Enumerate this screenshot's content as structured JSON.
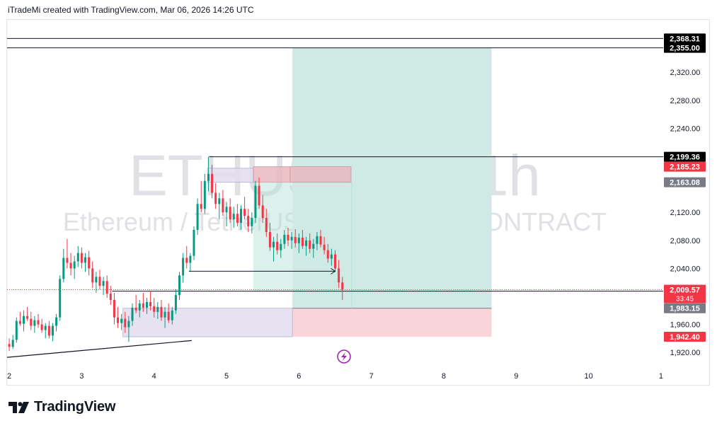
{
  "header": {
    "attribution": "iTradeMi created with TradingView.com, Mar 06, 2026 14:26 UTC"
  },
  "brand": {
    "wordmark": "TradingView"
  },
  "colors": {
    "up": "#089981",
    "down": "#f23645",
    "target_zone": "#cfeae5",
    "stop_zone": "#f9d4d8",
    "demand_zone": "#e3ddf0",
    "supply_zone": "#e8b9c0",
    "current_price": "#f23645",
    "axis_label_dark": "#131722",
    "axis_label_grey": "#787b86"
  },
  "chart_data": {
    "type": "candlestick",
    "symbol_watermark": "ETHUSDT.P, 1h",
    "description_watermark": "Ethereum / TetherUS PERPETUAL CONTRACT",
    "x_tick_labels": [
      "2",
      "3",
      "4",
      "5",
      "6",
      "7",
      "8",
      "9",
      "10",
      "1"
    ],
    "x_tick_days": [
      2,
      3,
      4,
      5,
      6,
      7,
      8,
      9,
      10,
      11
    ],
    "x_range_days": [
      1.97,
      11.03
    ],
    "y_range": [
      1900,
      2395
    ],
    "y_tick_values": [
      1920,
      1960,
      2040,
      2080,
      2120,
      2240,
      2280,
      2320
    ],
    "y_tick_labels": [
      "1,920.00",
      "1,960.00",
      "2,040.00",
      "2,080.00",
      "2,120.00",
      "2,240.00",
      "2,280.00",
      "2,320.00"
    ],
    "price_labels": [
      {
        "value": 2368.31,
        "text": "2,368.31",
        "style": "dark"
      },
      {
        "value": 2355.0,
        "text": "2,355.00",
        "style": "dark"
      },
      {
        "value": 2199.36,
        "text": "2,199.36",
        "style": "dark"
      },
      {
        "value": 2185.23,
        "text": "2,185.23",
        "style": "red"
      },
      {
        "value": 2163.08,
        "text": "2,163.08",
        "style": "grey"
      },
      {
        "value": 2009.57,
        "text": "2,009.57",
        "style": "red",
        "countdown": "33:45"
      },
      {
        "value": 1983.15,
        "text": "1,983.15",
        "style": "grey"
      },
      {
        "value": 1942.4,
        "text": "1,942.40",
        "style": "red"
      }
    ],
    "last_price": 2009.57,
    "horizontal_lines": [
      {
        "value": 2368.31,
        "from_day": 1.97,
        "to_day": 11.03
      },
      {
        "value": 2355.0,
        "from_day": 1.97,
        "to_day": 11.03
      },
      {
        "value": 2199.36,
        "from_day": 4.76,
        "to_day": 11.03
      },
      {
        "value": 2009.57,
        "from_day": 1.97,
        "to_day": 11.03,
        "style": "dotted"
      },
      {
        "value": 2007.5,
        "from_day": 3.42,
        "to_day": 11.03
      }
    ],
    "long_position": {
      "entry_day": 5.91,
      "end_day": 8.66,
      "entry": 1983.15,
      "target": 2355.0,
      "stop": 1942.4
    },
    "zones": [
      {
        "kind": "demand",
        "from_day": 3.57,
        "to_day": 5.91,
        "low": 1942.4,
        "high": 1983.15
      },
      {
        "kind": "demand",
        "from_day": 4.74,
        "to_day": 5.37,
        "low": 2163.08,
        "high": 2183.0
      },
      {
        "kind": "supply",
        "from_day": 5.37,
        "to_day": 5.88,
        "low": 2163.08,
        "high": 2185.23
      },
      {
        "kind": "supply",
        "from_day": 5.88,
        "to_day": 6.72,
        "low": 2163.08,
        "high": 2185.23
      },
      {
        "kind": "projection",
        "from_day": 5.37,
        "to_day": 5.91,
        "low": 2007.5,
        "high": 2163.08
      },
      {
        "kind": "projection",
        "from_day": 6.72,
        "to_day": 6.74,
        "low": 1983.15,
        "high": 2163.08
      }
    ],
    "trendline": {
      "from_day": 1.97,
      "from_value": 1913,
      "to_day": 4.52,
      "to_value": 1937
    },
    "arrow": {
      "from_day": 4.48,
      "to_day": 6.5,
      "value": 2036
    },
    "candles": [
      [
        2.0,
        1932,
        1940,
        1922,
        1928
      ],
      [
        2.05,
        1928,
        1945,
        1925,
        1938
      ],
      [
        2.1,
        1938,
        1970,
        1934,
        1965
      ],
      [
        2.15,
        1965,
        1978,
        1958,
        1961
      ],
      [
        2.2,
        1961,
        1980,
        1950,
        1972
      ],
      [
        2.25,
        1972,
        1985,
        1965,
        1968
      ],
      [
        2.3,
        1968,
        1978,
        1952,
        1958
      ],
      [
        2.35,
        1958,
        1972,
        1948,
        1966
      ],
      [
        2.4,
        1966,
        1975,
        1955,
        1960
      ],
      [
        2.45,
        1960,
        1968,
        1948,
        1952
      ],
      [
        2.5,
        1952,
        1962,
        1940,
        1958
      ],
      [
        2.55,
        1958,
        1965,
        1940,
        1944
      ],
      [
        2.6,
        1944,
        1962,
        1936,
        1958
      ],
      [
        2.65,
        1958,
        1975,
        1950,
        1970
      ],
      [
        2.7,
        1970,
        2030,
        1965,
        2025
      ],
      [
        2.75,
        2025,
        2068,
        2020,
        2055
      ],
      [
        2.8,
        2055,
        2082,
        2040,
        2048
      ],
      [
        2.85,
        2048,
        2062,
        2030,
        2040
      ],
      [
        2.9,
        2040,
        2058,
        2025,
        2050
      ],
      [
        2.95,
        2050,
        2072,
        2042,
        2062
      ],
      [
        3.0,
        2062,
        2070,
        2040,
        2048
      ],
      [
        3.05,
        2048,
        2062,
        2035,
        2056
      ],
      [
        3.1,
        2056,
        2065,
        2030,
        2040
      ],
      [
        3.15,
        2040,
        2050,
        2012,
        2020
      ],
      [
        3.2,
        2020,
        2035,
        2005,
        2028
      ],
      [
        3.25,
        2028,
        2038,
        2010,
        2015
      ],
      [
        3.3,
        2015,
        2028,
        2002,
        2022
      ],
      [
        3.35,
        2022,
        2030,
        1998,
        2004
      ],
      [
        3.4,
        2004,
        2015,
        1988,
        1995
      ],
      [
        3.45,
        1995,
        2005,
        1960,
        1970
      ],
      [
        3.5,
        1970,
        1985,
        1955,
        1962
      ],
      [
        3.55,
        1962,
        1975,
        1952,
        1968
      ],
      [
        3.6,
        1968,
        1978,
        1948,
        1956
      ],
      [
        3.65,
        1956,
        1972,
        1935,
        1965
      ],
      [
        3.7,
        1965,
        1990,
        1958,
        1984
      ],
      [
        3.75,
        1984,
        2002,
        1976,
        1980
      ],
      [
        3.8,
        1980,
        1995,
        1970,
        1990
      ],
      [
        3.85,
        1990,
        2005,
        1978,
        1984
      ],
      [
        3.9,
        1984,
        1998,
        1975,
        1992
      ],
      [
        3.95,
        1992,
        2008,
        1980,
        1986
      ],
      [
        4.0,
        1986,
        1998,
        1970,
        1978
      ],
      [
        4.05,
        1978,
        1992,
        1968,
        1985
      ],
      [
        4.1,
        1985,
        1995,
        1965,
        1970
      ],
      [
        4.15,
        1970,
        1985,
        1955,
        1978
      ],
      [
        4.2,
        1978,
        1990,
        1962,
        1966
      ],
      [
        4.25,
        1966,
        1985,
        1960,
        1980
      ],
      [
        4.3,
        1980,
        2010,
        1975,
        2002
      ],
      [
        4.35,
        2002,
        2035,
        1995,
        2030
      ],
      [
        4.4,
        2030,
        2062,
        2020,
        2055
      ],
      [
        4.45,
        2055,
        2072,
        2040,
        2048
      ],
      [
        4.5,
        2048,
        2062,
        2035,
        2058
      ],
      [
        4.55,
        2058,
        2100,
        2052,
        2095
      ],
      [
        4.6,
        2095,
        2140,
        2088,
        2132
      ],
      [
        4.65,
        2132,
        2165,
        2120,
        2125
      ],
      [
        4.7,
        2125,
        2175,
        2118,
        2165
      ],
      [
        4.75,
        2165,
        2199,
        2150,
        2175
      ],
      [
        4.8,
        2175,
        2188,
        2140,
        2148
      ],
      [
        4.85,
        2148,
        2162,
        2125,
        2132
      ],
      [
        4.9,
        2132,
        2148,
        2110,
        2140
      ],
      [
        4.95,
        2140,
        2152,
        2115,
        2120
      ],
      [
        5.0,
        2120,
        2135,
        2100,
        2128
      ],
      [
        5.05,
        2128,
        2140,
        2105,
        2110
      ],
      [
        5.1,
        2110,
        2128,
        2098,
        2118
      ],
      [
        5.15,
        2118,
        2132,
        2100,
        2105
      ],
      [
        5.2,
        2105,
        2130,
        2095,
        2125
      ],
      [
        5.25,
        2125,
        2142,
        2110,
        2115
      ],
      [
        5.3,
        2115,
        2125,
        2092,
        2100
      ],
      [
        5.35,
        2100,
        2120,
        2090,
        2112
      ],
      [
        5.4,
        2112,
        2165,
        2105,
        2158
      ],
      [
        5.45,
        2158,
        2170,
        2125,
        2130
      ],
      [
        5.5,
        2130,
        2145,
        2105,
        2112
      ],
      [
        5.55,
        2112,
        2125,
        2085,
        2092
      ],
      [
        5.6,
        2092,
        2105,
        2065,
        2070
      ],
      [
        5.65,
        2070,
        2085,
        2050,
        2078
      ],
      [
        5.7,
        2078,
        2090,
        2060,
        2066
      ],
      [
        5.75,
        2066,
        2082,
        2055,
        2075
      ],
      [
        5.8,
        2075,
        2095,
        2068,
        2088
      ],
      [
        5.85,
        2088,
        2098,
        2072,
        2080
      ],
      [
        5.9,
        2080,
        2092,
        2068,
        2085
      ],
      [
        5.95,
        2085,
        2096,
        2070,
        2076
      ],
      [
        6.0,
        2076,
        2090,
        2062,
        2084
      ],
      [
        6.05,
        2084,
        2095,
        2068,
        2072
      ],
      [
        6.1,
        2072,
        2085,
        2058,
        2080
      ],
      [
        6.15,
        2080,
        2090,
        2062,
        2068
      ],
      [
        6.2,
        2068,
        2082,
        2055,
        2075
      ],
      [
        6.25,
        2075,
        2092,
        2066,
        2086
      ],
      [
        6.3,
        2086,
        2095,
        2070,
        2074
      ],
      [
        6.35,
        2074,
        2085,
        2060,
        2066
      ],
      [
        6.4,
        2066,
        2075,
        2048,
        2054
      ],
      [
        6.45,
        2054,
        2068,
        2044,
        2060
      ],
      [
        6.5,
        2060,
        2066,
        2035,
        2040
      ],
      [
        6.55,
        2040,
        2052,
        2012,
        2020
      ],
      [
        6.6,
        2020,
        2028,
        1995,
        2009.57
      ]
    ]
  }
}
